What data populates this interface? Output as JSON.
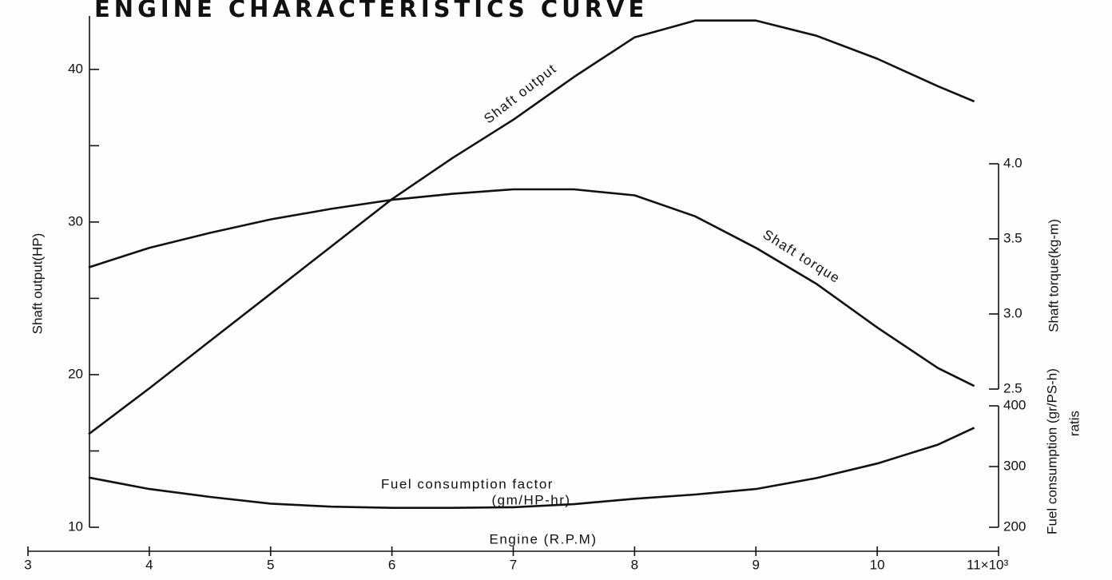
{
  "chart_data": {
    "type": "line",
    "title": "ENGINE CHARACTERISTICS CURVE",
    "xlabel": "Engine (R.P.M)",
    "ylabel": "Shaft output(HP)",
    "y2label": "Shaft torque(kg-m)",
    "y3label": "Fuel consumption (gr/PS-h)",
    "y3label2": "ratis",
    "fuel_unit_note": "(gm/HP-hr)",
    "xlim": [
      3,
      11
    ],
    "xticks": [
      3,
      4,
      5,
      6,
      7,
      8,
      9,
      10,
      {
        "value": 11,
        "label": "11×10³"
      }
    ],
    "ylim": [
      10,
      43.5
    ],
    "yticks": [
      10,
      20,
      30,
      40
    ],
    "yminorticks": [
      15,
      25,
      35
    ],
    "y2lim": [
      2.5,
      4.0
    ],
    "y2ticks": [
      {
        "value": 4.0,
        "label": "4.0"
      },
      {
        "value": 3.5,
        "label": "3.5"
      },
      {
        "value": 3.0,
        "label": "3.0"
      },
      {
        "value": 2.5,
        "label": "2.5"
      }
    ],
    "y3lim": [
      200,
      400
    ],
    "y3ticks": [
      200,
      300,
      400
    ],
    "x": [
      3.5,
      4,
      4.5,
      5,
      5.5,
      6,
      6.5,
      7,
      7.5,
      8,
      8.5,
      9,
      9.5,
      10,
      10.5,
      10.8
    ],
    "series": [
      {
        "name": "Shaft output",
        "color": "#111111",
        "axis": "y",
        "values": [
          16.1,
          19.1,
          22.2,
          25.3,
          28.4,
          31.5,
          34.2,
          36.7,
          39.5,
          42.1,
          43.2,
          43.2,
          42.2,
          40.7,
          38.9,
          37.9
        ]
      },
      {
        "name": "Shaft torque",
        "color": "#111111",
        "axis": "y2",
        "values": [
          3.31,
          3.44,
          3.54,
          3.63,
          3.7,
          3.76,
          3.8,
          3.83,
          3.83,
          3.79,
          3.65,
          3.44,
          3.2,
          2.91,
          2.64,
          2.52
        ]
      },
      {
        "name": "Fuel consumption factor",
        "color": "#111111",
        "axis": "y3",
        "values": [
          282,
          263,
          250,
          239,
          234,
          232,
          232,
          233,
          238,
          247,
          254,
          263,
          281,
          305,
          336,
          364
        ]
      }
    ]
  }
}
